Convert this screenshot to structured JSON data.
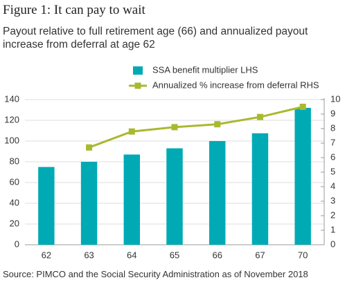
{
  "chart_data": {
    "type": "bar",
    "title": "Figure 1: It can pay to wait",
    "subtitle": "Payout relative to full retirement age (66) and annualized payout increase from deferral at age 62",
    "source": "Source: PIMCO and the Social Security Administration as of November 2018",
    "categories": [
      "62",
      "63",
      "64",
      "65",
      "66",
      "67",
      "70"
    ],
    "series": [
      {
        "name": "SSA benefit multiplier LHS",
        "type": "bar",
        "color": "#00aab5",
        "values": [
          75,
          80,
          87,
          93,
          100,
          107.5,
          132
        ]
      },
      {
        "name": "Annualized % increase from deferral RHS",
        "type": "line",
        "axis": "y2",
        "color": "#a9b92f",
        "values": [
          null,
          6.7,
          7.8,
          8.1,
          8.3,
          8.8,
          9.5
        ]
      }
    ],
    "ylim": [
      0,
      140
    ],
    "yticks": [
      0,
      20,
      40,
      60,
      80,
      100,
      120,
      140
    ],
    "y2lim": [
      0,
      10
    ],
    "y2ticks": [
      0,
      1,
      2,
      3,
      4,
      5,
      6,
      7,
      8,
      9,
      10
    ],
    "grid": true
  }
}
